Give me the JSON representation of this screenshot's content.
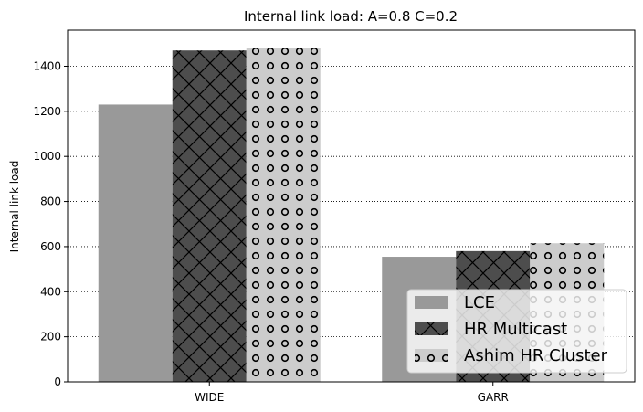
{
  "chart_data": {
    "type": "bar",
    "title": "Internal link load: A=0.8 C=0.2",
    "xlabel": "",
    "ylabel": "Internal link load",
    "categories": [
      "WIDE",
      "GARR"
    ],
    "ylim": [
      0,
      1560
    ],
    "yticks": [
      0,
      200,
      400,
      600,
      800,
      1000,
      1200,
      1400
    ],
    "grid": "horizontal dotted",
    "legend_position": "lower-right",
    "series": [
      {
        "name": "LCE",
        "values": [
          1230,
          555
        ],
        "color": "#999999",
        "pattern": "solid"
      },
      {
        "name": "HR Multicast",
        "values": [
          1470,
          580
        ],
        "color": "#4d4d4d",
        "pattern": "crosshatch"
      },
      {
        "name": "Ashim HR Cluster",
        "values": [
          1480,
          615
        ],
        "color": "#cccccc",
        "pattern": "circles"
      }
    ]
  }
}
